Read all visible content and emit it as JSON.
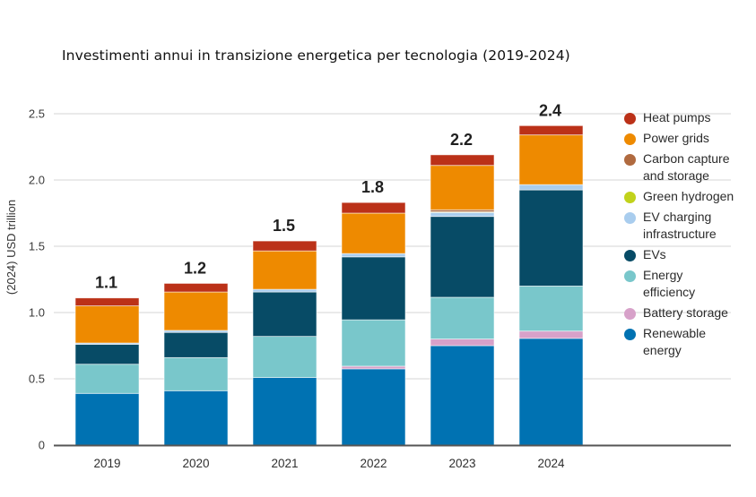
{
  "title": "Investimenti annui in transizione energetica per tecnologia (2019-2024)",
  "chart_data": {
    "type": "bar",
    "stacked": true,
    "title": "Investimenti annui in transizione energetica per tecnologia (2019-2024)",
    "xlabel": "",
    "ylabel": "(2024) USD trillion",
    "ylim": [
      0,
      2.5
    ],
    "yticks": [
      0,
      0.5,
      1.0,
      1.5,
      2.0,
      2.5
    ],
    "ytick_labels": [
      "0",
      "0.5",
      "1.0",
      "1.5",
      "2.0",
      "2.5"
    ],
    "grid": true,
    "legend_position": "right",
    "categories": [
      "2019",
      "2020",
      "2021",
      "2022",
      "2023",
      "2024"
    ],
    "totals": [
      1.11,
      1.22,
      1.54,
      1.83,
      2.19,
      2.41
    ],
    "total_labels": [
      "1.1",
      "1.2",
      "1.5",
      "1.8",
      "2.2",
      "2.4"
    ],
    "series": [
      {
        "name": "Renewable energy",
        "color": "#0072b2",
        "values": [
          0.39,
          0.41,
          0.51,
          0.575,
          0.75,
          0.805
        ]
      },
      {
        "name": "Battery storage",
        "color": "#d7a1c9",
        "values": [
          0.0,
          0.0,
          0.0,
          0.02,
          0.05,
          0.055
        ]
      },
      {
        "name": "Energy efficiency",
        "color": "#79c7cb",
        "values": [
          0.22,
          0.25,
          0.31,
          0.35,
          0.315,
          0.34
        ]
      },
      {
        "name": "EVs",
        "color": "#074b66",
        "values": [
          0.15,
          0.19,
          0.335,
          0.475,
          0.61,
          0.725
        ]
      },
      {
        "name": "EV charging infrastructure",
        "color": "#a9cdee",
        "values": [
          0.01,
          0.015,
          0.02,
          0.025,
          0.03,
          0.04
        ]
      },
      {
        "name": "Green hydrogen",
        "color": "#c1d21b",
        "values": [
          0.0,
          0.0,
          0.0,
          0.0,
          0.005,
          0.0
        ]
      },
      {
        "name": "Carbon capture and storage",
        "color": "#b06a3f",
        "values": [
          0.0,
          0.0,
          0.0,
          0.0,
          0.015,
          0.0
        ]
      },
      {
        "name": "Power grids",
        "color": "#ee8a00",
        "values": [
          0.28,
          0.29,
          0.29,
          0.305,
          0.335,
          0.375
        ]
      },
      {
        "name": "Heat pumps",
        "color": "#bb3118",
        "values": [
          0.06,
          0.065,
          0.075,
          0.08,
          0.08,
          0.07
        ]
      }
    ]
  },
  "legend": [
    {
      "label": "Heat pumps",
      "color": "#bb3118"
    },
    {
      "label": "Power grids",
      "color": "#ee8a00"
    },
    {
      "label": "Carbon capture\nand storage",
      "color": "#b06a3f"
    },
    {
      "label": "Green hydrogen",
      "color": "#c1d21b"
    },
    {
      "label": "EV charging\ninfrastructure",
      "color": "#a9cdee"
    },
    {
      "label": "EVs",
      "color": "#074b66"
    },
    {
      "label": "Energy\nefficiency",
      "color": "#79c7cb"
    },
    {
      "label": "Battery storage",
      "color": "#d7a1c9"
    },
    {
      "label": "Renewable\nenergy",
      "color": "#0072b2"
    }
  ]
}
